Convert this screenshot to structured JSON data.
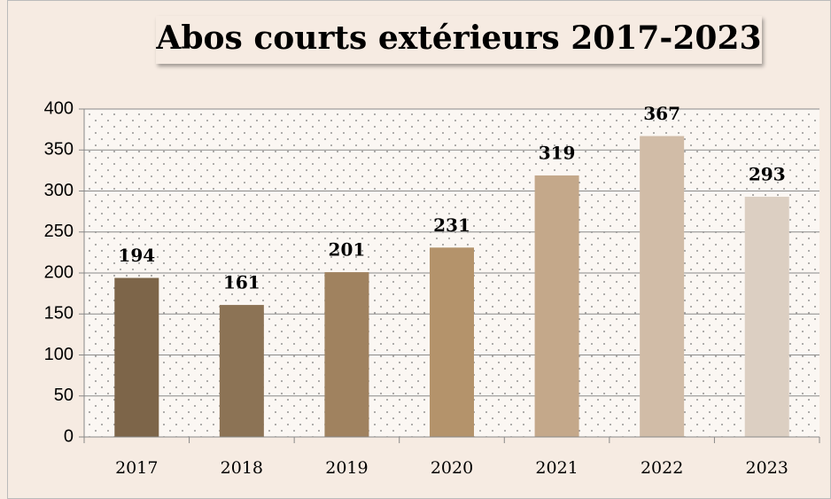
{
  "chart_data": {
    "type": "bar",
    "title": "Abos courts extérieurs 2017-2023",
    "categories": [
      "2017",
      "2018",
      "2019",
      "2020",
      "2021",
      "2022",
      "2023"
    ],
    "values": [
      194,
      161,
      201,
      231,
      319,
      367,
      293
    ],
    "colors": [
      "#7d6549",
      "#8c7355",
      "#a0825f",
      "#b4936b",
      "#c4a88a",
      "#d1bca7",
      "#dccfc2"
    ],
    "ylim": [
      0,
      400
    ],
    "yticks": [
      0,
      50,
      100,
      150,
      200,
      250,
      300,
      350,
      400
    ],
    "grid": true
  }
}
